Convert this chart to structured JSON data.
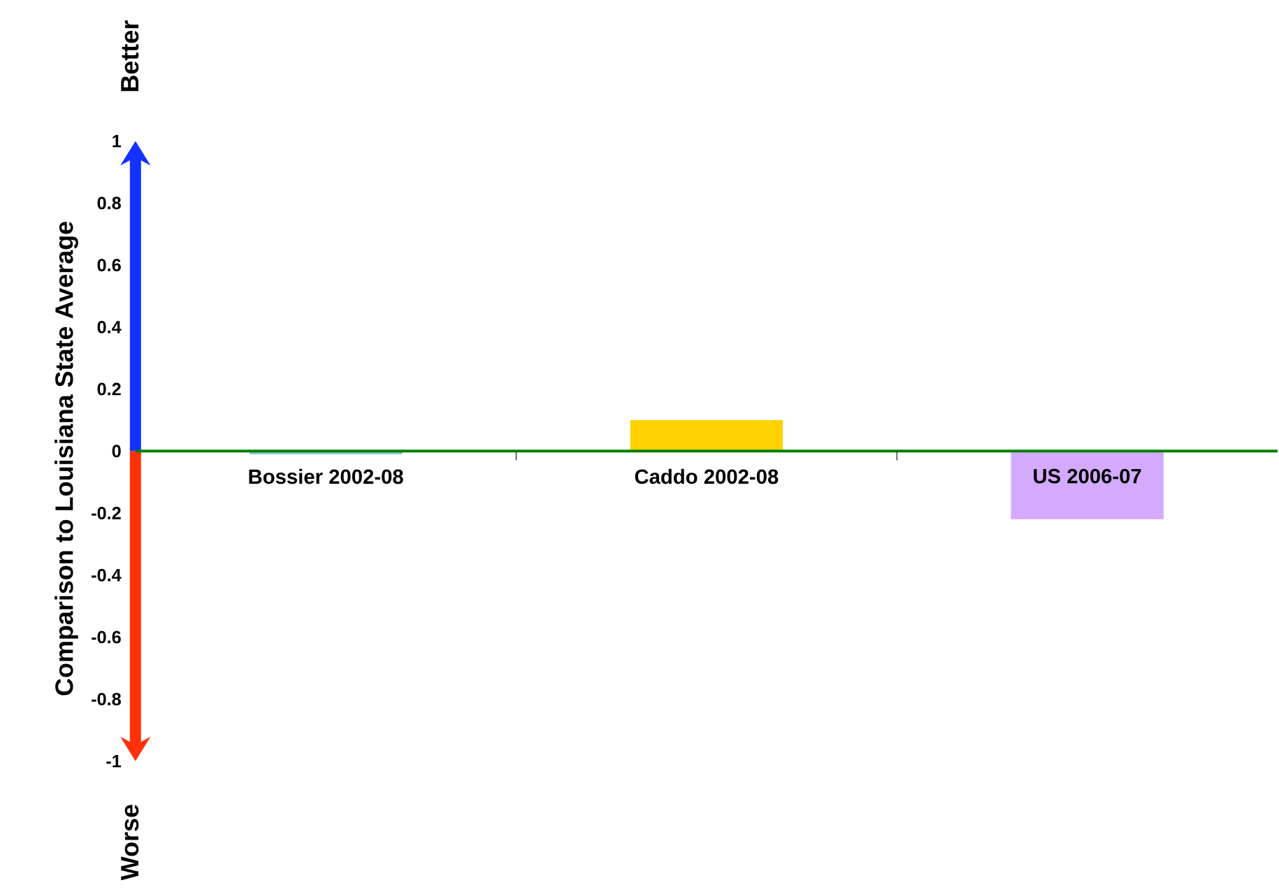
{
  "chart_data": {
    "type": "bar",
    "ylabel": "Comparison to Louisiana State Average",
    "categories": [
      "Bossier 2002-08",
      "Caddo 2002-08",
      "US 2006-07"
    ],
    "values": [
      -0.01,
      0.1,
      -0.22
    ],
    "colors": [
      "#7fc4d6",
      "#ffd200",
      "#d4aaff"
    ],
    "ylim": [
      -1,
      1
    ],
    "yticks": [
      -1,
      -0.8,
      -0.6,
      -0.4,
      -0.2,
      0,
      0.2,
      0.4,
      0.6,
      0.8,
      1
    ],
    "annotations": [
      "Better",
      "Worse"
    ],
    "grid": false
  }
}
